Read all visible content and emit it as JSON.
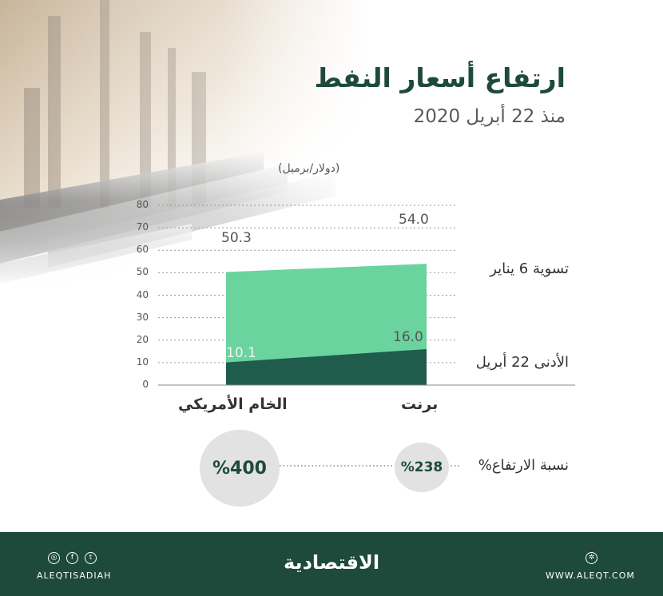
{
  "header": {
    "title": "ارتفاع أسعار النفط",
    "subtitle": "منذ 22 أبريل 2020",
    "unit": "(دولار/برميل)"
  },
  "chart_data": {
    "type": "area",
    "categories": [
      "الخام الأمريكي",
      "برنت"
    ],
    "series": [
      {
        "name": "تسوية 6 يناير",
        "values": [
          50.3,
          54.0
        ],
        "color": "#6ad39e"
      },
      {
        "name": "الأدنى 22 أبريل",
        "values": [
          10.1,
          16.0
        ],
        "color": "#1f5c4c"
      }
    ],
    "yticks": [
      "0",
      "10",
      "20",
      "30",
      "40",
      "50",
      "60",
      "70",
      "80"
    ],
    "ylim": [
      0,
      80
    ],
    "grid": true,
    "value_labels": [
      "50.3",
      "54.0",
      "10.1",
      "16.0"
    ]
  },
  "increase": {
    "label": "نسبة الارتفاع%",
    "us_crude": "%400",
    "brent": "%238"
  },
  "footer": {
    "logo": "الاقتصادية",
    "handle": "ALEQTISADIAH",
    "website": "WWW.ALEQT.COM",
    "icons": [
      "instagram-icon",
      "facebook-icon",
      "twitter-icon",
      "globe-icon"
    ]
  }
}
